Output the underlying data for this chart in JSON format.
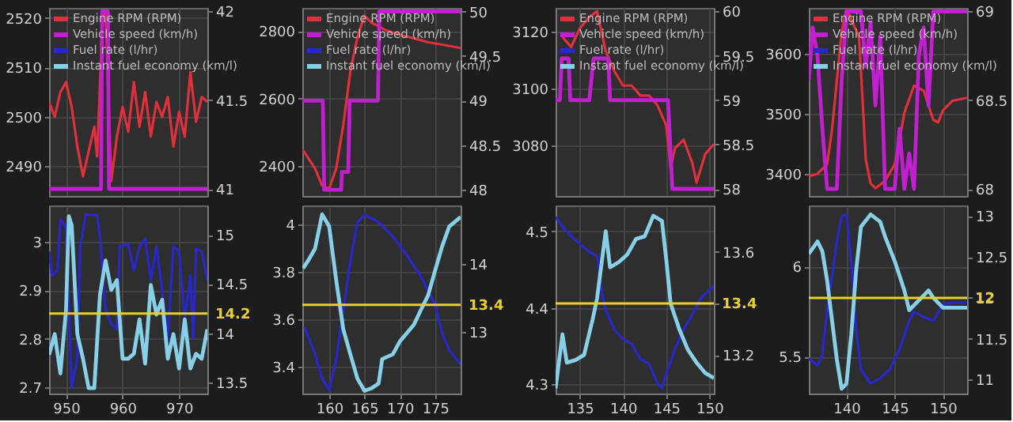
{
  "chart_data": [
    {
      "type": "line",
      "xlim": [
        947,
        975
      ],
      "xticks": [
        950,
        960,
        970
      ],
      "ylim": [
        2484,
        2522
      ],
      "yticks": [
        2490,
        2500,
        2510,
        2520
      ],
      "y2lim": [
        40.96,
        42.02
      ],
      "y2ticks": [
        41,
        41.5,
        42
      ],
      "grid": true,
      "tick_labels": "y",
      "legend": "top left",
      "series": [
        {
          "name": "Engine RPM (RPM)",
          "color": "#e0303c",
          "x": [
            947,
            948,
            949,
            950,
            951,
            952,
            953,
            954,
            955,
            955.5,
            956.5,
            957,
            958,
            959,
            960,
            961,
            962,
            963,
            964,
            965,
            966,
            967,
            968,
            969,
            970,
            971,
            972,
            973,
            974,
            975
          ],
          "values": [
            2503,
            2500,
            2505,
            2507,
            2502,
            2494,
            2488,
            2493,
            2498,
            2492,
            2521,
            2521,
            2487,
            2496,
            2502,
            2497,
            2507,
            2498,
            2505,
            2496,
            2503,
            2500,
            2504,
            2494,
            2501,
            2496,
            2509,
            2499,
            2504,
            2503
          ]
        },
        {
          "name": "Vehicle speed (km/h)",
          "color": "#c020d0",
          "axis": "y2",
          "x": [
            947,
            956.2,
            956.4,
            957.4,
            957.6,
            975
          ],
          "values": [
            41,
            41,
            42,
            42,
            41,
            41
          ]
        }
      ]
    },
    {
      "type": "line",
      "xlim": [
        947,
        975
      ],
      "xticks": [
        950,
        960,
        970
      ],
      "ylim": [
        2.687,
        3.074
      ],
      "yticks": [
        2.7,
        2.8,
        2.9,
        3
      ],
      "y2lim": [
        13.385,
        15.3
      ],
      "y2ticks": [
        13.5,
        14,
        14.5,
        15
      ],
      "grid": true,
      "legend": "top",
      "ref_lines": [
        {
          "axis": "y2",
          "value": 14.2,
          "label": "14.2",
          "color": "#e8d030"
        }
      ],
      "series": [
        {
          "name": "Fuel rate (l/hr)",
          "color": "#2828c8",
          "x": [
            947,
            947.5,
            948.5,
            949,
            950,
            950.5,
            951,
            952,
            952.5,
            953.5,
            955.5,
            956,
            957,
            958,
            959,
            959.5,
            961,
            962,
            963,
            964,
            965,
            966,
            967,
            968,
            969,
            970,
            971,
            972,
            972.5,
            973,
            974,
            975
          ],
          "values": [
            2.98,
            2.93,
            2.94,
            3.045,
            3.03,
            2.86,
            2.7,
            2.76,
            2.99,
            3.055,
            3.055,
            3.01,
            2.86,
            2.83,
            2.82,
            2.99,
            2.995,
            2.94,
            2.99,
            3.005,
            2.92,
            2.99,
            2.9,
            2.8,
            2.99,
            2.98,
            2.84,
            2.93,
            2.8,
            2.985,
            2.98,
            2.92
          ]
        },
        {
          "name": "Instant fuel economy (km/l)",
          "color": "#88d0e8",
          "axis": "y2",
          "x": [
            947,
            948,
            949,
            950,
            950.5,
            951,
            952,
            953,
            954,
            955,
            956,
            957,
            958,
            959,
            960,
            961,
            962,
            963,
            964,
            965,
            966,
            967,
            968,
            969,
            970,
            971,
            972,
            973,
            974,
            975
          ],
          "values": [
            13.78,
            13.99,
            13.59,
            14.24,
            15.19,
            15.1,
            13.99,
            13.74,
            13.44,
            13.44,
            14.39,
            14.74,
            14.44,
            14.54,
            13.74,
            13.74,
            13.79,
            14.14,
            13.69,
            14.49,
            14.19,
            14.34,
            13.74,
            13.99,
            13.64,
            14.14,
            13.64,
            13.79,
            13.74,
            14.04
          ]
        }
      ]
    },
    {
      "type": "line",
      "xlim": [
        156.2,
        178.6
      ],
      "xticks": [
        160,
        165,
        170,
        175
      ],
      "ylim": [
        2311,
        2869
      ],
      "yticks": [
        2400,
        2600,
        2800
      ],
      "y2lim": [
        47.93,
        50.04
      ],
      "y2ticks": [
        48,
        48.5,
        49,
        49.5,
        50
      ],
      "grid": true,
      "tick_labels": "y",
      "legend": "top left",
      "series": [
        {
          "name": "Engine RPM (RPM)",
          "color": "#e0303c",
          "x": [
            156.2,
            158,
            159,
            160,
            161,
            162,
            163,
            164,
            165,
            166,
            168,
            170,
            172,
            174,
            176,
            178.6
          ],
          "values": [
            2450,
            2393,
            2342,
            2332,
            2393,
            2522,
            2681,
            2782,
            2846,
            2825,
            2803,
            2789,
            2779,
            2767,
            2760,
            2750
          ]
        },
        {
          "name": "Vehicle speed (km/h)",
          "color": "#c020d0",
          "axis": "y2",
          "x": [
            156.2,
            159.1,
            159.3,
            161.7,
            161.8,
            162.7,
            162.9,
            166.9,
            167.1,
            178.6
          ],
          "values": [
            49,
            49,
            48,
            48,
            48.2,
            48.2,
            49,
            49,
            50,
            50
          ]
        }
      ]
    },
    {
      "type": "line",
      "xlim": [
        156.2,
        178.6
      ],
      "xticks": [
        160,
        165,
        170,
        175
      ],
      "ylim": [
        3.287,
        4.08
      ],
      "yticks": [
        3.4,
        3.6,
        3.8,
        4
      ],
      "y2lim": [
        12.09,
        14.87
      ],
      "y2ticks": [
        13,
        14
      ],
      "grid": true,
      "legend": "top",
      "ref_lines": [
        {
          "axis": "y2",
          "value": 13.4,
          "label": "13.4",
          "color": "#e8d030"
        }
      ],
      "series": [
        {
          "name": "Fuel rate (l/hr)",
          "color": "#2828c8",
          "x": [
            156.5,
            158,
            159,
            160,
            161,
            162,
            163,
            164,
            165,
            167,
            169,
            171,
            173,
            175,
            176,
            177,
            178.6
          ],
          "values": [
            3.567,
            3.454,
            3.35,
            3.3,
            3.43,
            3.64,
            3.845,
            4.01,
            4.04,
            4.01,
            3.95,
            3.87,
            3.78,
            3.66,
            3.54,
            3.47,
            3.41
          ]
        },
        {
          "name": "Instant fuel economy (km/l)",
          "color": "#88d0e8",
          "axis": "y2",
          "x": [
            156.3,
            157,
            158,
            159,
            160,
            161,
            162,
            163,
            164,
            165,
            166,
            167,
            167.5,
            169,
            170,
            172,
            173,
            174,
            175,
            176,
            177,
            178.6
          ],
          "values": [
            13.94,
            14.05,
            14.23,
            14.74,
            14.56,
            13.76,
            13.04,
            12.67,
            12.31,
            12.13,
            12.17,
            12.24,
            12.6,
            12.67,
            12.86,
            13.11,
            13.33,
            13.54,
            13.91,
            14.27,
            14.56,
            14.7
          ]
        }
      ]
    },
    {
      "type": "line",
      "xlim": [
        132.2,
        150.5
      ],
      "xticks": [
        135,
        140,
        145,
        150
      ],
      "ylim": [
        3062.3,
        3128.2
      ],
      "yticks": [
        3080,
        3100,
        3120
      ],
      "y2lim": [
        57.92,
        60.04
      ],
      "y2ticks": [
        58,
        58.5,
        59,
        59.5,
        60
      ],
      "grid": true,
      "tick_labels": "y",
      "legend": "top left",
      "series": [
        {
          "name": "Engine RPM (RPM)",
          "color": "#e0303c",
          "x": [
            133,
            134,
            135,
            136,
            137,
            138,
            139,
            140,
            141,
            142,
            143,
            144,
            145,
            145.5,
            146,
            147,
            148,
            148.5,
            149,
            149.5,
            150.5
          ],
          "values": [
            3118,
            3114.5,
            3121,
            3124.7,
            3127,
            3113,
            3106,
            3101,
            3101,
            3097.5,
            3097.5,
            3094,
            3087,
            3072,
            3079,
            3082,
            3074,
            3067,
            3072,
            3077,
            3080.5
          ]
        },
        {
          "name": "Vehicle speed (km/h)",
          "color": "#c020d0",
          "axis": "y2",
          "x": [
            132.2,
            132.7,
            132.9,
            133.7,
            133.9,
            136.1,
            136.6,
            138.3,
            138.5,
            145.2,
            145.7,
            150.5
          ],
          "values": [
            59,
            59,
            59.47,
            59.47,
            59,
            59,
            59.47,
            59.47,
            59,
            59,
            58,
            58
          ]
        }
      ]
    },
    {
      "type": "line",
      "xlim": [
        132.2,
        150.5
      ],
      "xticks": [
        135,
        140,
        145,
        150
      ],
      "ylim": [
        4.288,
        4.534
      ],
      "yticks": [
        4.3,
        4.4,
        4.5
      ],
      "y2lim": [
        13.05,
        13.78
      ],
      "y2ticks": [
        13.2,
        {
          "value": 13.4,
          "label": null
        },
        13.6
      ],
      "grid": true,
      "legend": "top",
      "ref_lines": [
        {
          "axis": "y2",
          "value": 13.4,
          "label": "13.4",
          "color": "#e8d030"
        }
      ],
      "series": [
        {
          "name": "Fuel rate (l/hr)",
          "color": "#2828c8",
          "x": [
            132.2,
            133,
            134,
            135,
            136,
            137,
            137.5,
            138,
            139,
            140,
            141,
            142,
            143,
            144,
            144.5,
            145,
            146,
            147,
            148,
            149,
            150.5
          ],
          "values": [
            4.519,
            4.506,
            4.494,
            4.484,
            4.474,
            4.468,
            4.423,
            4.397,
            4.372,
            4.359,
            4.353,
            4.333,
            4.327,
            4.301,
            4.295,
            4.314,
            4.346,
            4.372,
            4.391,
            4.413,
            4.429
          ]
        },
        {
          "name": "Instant fuel economy (km/l)",
          "color": "#88d0e8",
          "axis": "y2",
          "x": [
            132.2,
            133,
            133.5,
            134.5,
            135.5,
            136.5,
            137,
            138,
            138.5,
            139.5,
            140.5,
            141.5,
            142.5,
            143.5,
            144.5,
            145,
            145.5,
            146.5,
            147.5,
            148.5,
            149.5,
            150.5
          ],
          "values": [
            13.07,
            13.28,
            13.17,
            13.18,
            13.2,
            13.34,
            13.42,
            13.68,
            13.54,
            13.56,
            13.59,
            13.65,
            13.66,
            13.74,
            13.72,
            13.57,
            13.4,
            13.3,
            13.22,
            13.17,
            13.13,
            13.11
          ]
        }
      ]
    },
    {
      "type": "line",
      "xlim": [
        136.1,
        152.5
      ],
      "xticks": [
        140,
        145,
        150
      ],
      "ylim": [
        3363,
        3677
      ],
      "yticks": [
        3400,
        3500,
        3600
      ],
      "y2lim": [
        67.96,
        69.02
      ],
      "y2ticks": [
        68,
        68.5,
        69
      ],
      "grid": true,
      "tick_labels": "y",
      "legend": "top left",
      "series": [
        {
          "name": "Engine RPM (RPM)",
          "color": "#e0303c",
          "x": [
            136.1,
            137,
            138,
            138.5,
            139,
            139.5,
            140,
            141.3,
            141.7,
            142,
            142.5,
            143,
            144,
            145,
            145.5,
            146,
            147,
            148,
            149,
            149.5,
            150,
            151,
            152.5
          ],
          "values": [
            3396,
            3400,
            3416,
            3473,
            3555,
            3637,
            3675,
            3629,
            3514,
            3424,
            3384,
            3376,
            3388,
            3416,
            3457,
            3502,
            3547,
            3539,
            3490,
            3486,
            3506,
            3522,
            3527
          ]
        },
        {
          "name": "Vehicle speed (km/h)",
          "color": "#c020d0",
          "axis": "y2",
          "x": [
            136.1,
            136.5,
            137,
            137.5,
            138,
            139,
            139.5,
            140,
            141.5,
            142,
            142.5,
            143,
            143.5,
            144,
            145,
            145.5,
            146,
            146.5,
            147,
            147.5,
            148,
            148.5,
            149,
            152.5
          ],
          "values": [
            68.61,
            68.91,
            68.75,
            68.34,
            68,
            68,
            68.61,
            69,
            69,
            68.69,
            68.94,
            68.47,
            68.86,
            68,
            68,
            68.34,
            68,
            68.2,
            68,
            68.75,
            68.91,
            68.47,
            69,
            69
          ]
        }
      ]
    },
    {
      "type": "line",
      "xlim": [
        136.1,
        152.5
      ],
      "xticks": [
        140,
        145,
        150
      ],
      "ylim": [
        5.295,
        6.34
      ],
      "yticks": [
        5.5,
        6
      ],
      "y2lim": [
        10.83,
        13.13
      ],
      "y2ticks": [
        11,
        11.5,
        12,
        12.5,
        13
      ],
      "grid": true,
      "legend": "top",
      "ref_lines": [
        {
          "axis": "y2",
          "value": 12,
          "label": "12",
          "color": "#e8d030"
        }
      ],
      "series": [
        {
          "name": "Fuel rate (l/hr)",
          "color": "#2828c8",
          "x": [
            136.1,
            137,
            137.5,
            138,
            139,
            139.5,
            140,
            140.5,
            141,
            141.5,
            142.5,
            143.5,
            144.5,
            145.5,
            146.5,
            147,
            148,
            149,
            150,
            151,
            152.5
          ],
          "values": [
            5.49,
            5.45,
            5.51,
            5.76,
            6.14,
            6.28,
            6.29,
            6.03,
            5.65,
            5.43,
            5.35,
            5.38,
            5.43,
            5.54,
            5.7,
            5.75,
            5.72,
            5.7,
            5.79,
            5.8,
            5.8
          ]
        },
        {
          "name": "Instant fuel economy (km/l)",
          "color": "#88d0e8",
          "axis": "y2",
          "x": [
            136.1,
            137,
            137.5,
            138,
            138.5,
            139,
            139.5,
            140,
            140.5,
            141,
            141.5,
            142.5,
            143.5,
            144,
            145,
            146,
            146.5,
            147,
            148,
            148.5,
            149,
            150,
            152.5
          ],
          "values": [
            12.54,
            12.69,
            12.57,
            12.21,
            11.73,
            11.25,
            10.89,
            10.95,
            11.55,
            12.33,
            12.87,
            13.02,
            12.93,
            12.75,
            12.45,
            12.09,
            11.85,
            11.91,
            12.03,
            12.09,
            12,
            11.88,
            11.88
          ]
        }
      ]
    }
  ]
}
